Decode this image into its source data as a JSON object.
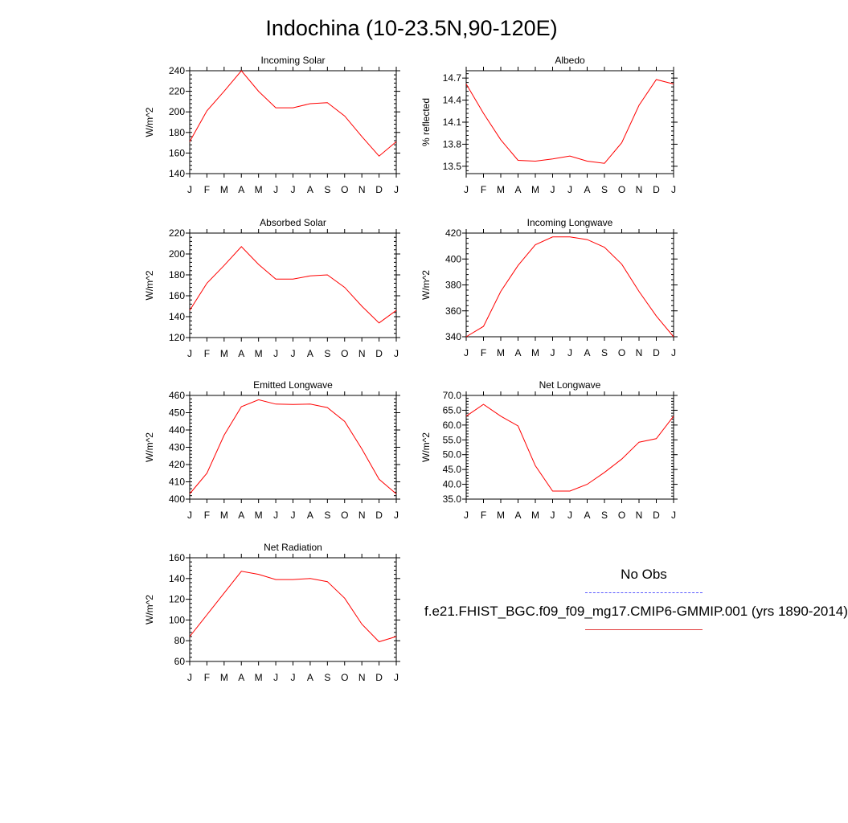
{
  "page_title": "Indochina (10-23.5N,90-120E)",
  "legend": {
    "obs_label": "No Obs",
    "obs_color": "#5b5bff",
    "model_label": "f.e21.FHIST_BGC.f09_f09_mg17.CMIP6-GMMIP.001 (yrs 1890-2014)",
    "model_color": "#ff0000"
  },
  "chart_data": [
    {
      "type": "line",
      "title": "Incoming Solar",
      "ylabel": "W/m^2",
      "categories": [
        "J",
        "F",
        "M",
        "A",
        "M",
        "J",
        "J",
        "A",
        "S",
        "O",
        "N",
        "D",
        "J"
      ],
      "ylim": [
        140,
        240
      ],
      "yticks": [
        "140",
        "160",
        "180",
        "200",
        "220",
        "240"
      ],
      "series": [
        {
          "values": [
            171,
            201,
            220,
            240,
            220,
            204,
            204,
            208,
            209,
            196,
            176,
            157,
            171
          ],
          "color": "#ff0000"
        }
      ]
    },
    {
      "type": "line",
      "title": "Albedo",
      "ylabel": "% reflected",
      "categories": [
        "J",
        "F",
        "M",
        "A",
        "M",
        "J",
        "J",
        "A",
        "S",
        "O",
        "N",
        "D",
        "J"
      ],
      "ylim": [
        13.4,
        14.8
      ],
      "yticks": [
        "13.5",
        "13.8",
        "14.1",
        "14.4",
        "14.7"
      ],
      "series": [
        {
          "values": [
            14.62,
            14.22,
            13.86,
            13.58,
            13.57,
            13.6,
            13.64,
            13.57,
            13.54,
            13.82,
            14.33,
            14.68,
            14.62
          ],
          "color": "#ff0000"
        }
      ]
    },
    {
      "type": "line",
      "title": "Absorbed Solar",
      "ylabel": "W/m^2",
      "categories": [
        "J",
        "F",
        "M",
        "A",
        "M",
        "J",
        "J",
        "A",
        "S",
        "O",
        "N",
        "D",
        "J"
      ],
      "ylim": [
        120,
        220
      ],
      "yticks": [
        "120",
        "140",
        "160",
        "180",
        "200",
        "220"
      ],
      "series": [
        {
          "values": [
            146,
            172,
            189,
            207,
            190,
            176,
            176,
            179,
            180,
            168,
            150,
            134,
            146
          ],
          "color": "#ff0000"
        }
      ]
    },
    {
      "type": "line",
      "title": "Incoming Longwave",
      "ylabel": "W/m^2",
      "categories": [
        "J",
        "F",
        "M",
        "A",
        "M",
        "J",
        "J",
        "A",
        "S",
        "O",
        "N",
        "D",
        "J"
      ],
      "ylim": [
        340,
        420
      ],
      "yticks": [
        "340",
        "360",
        "380",
        "400",
        "420"
      ],
      "series": [
        {
          "values": [
            340,
            348,
            375,
            395,
            411,
            417,
            417,
            415,
            409,
            396,
            375,
            356,
            340
          ],
          "color": "#ff0000"
        }
      ]
    },
    {
      "type": "line",
      "title": "Emitted Longwave",
      "ylabel": "W/m^2",
      "categories": [
        "J",
        "F",
        "M",
        "A",
        "M",
        "J",
        "J",
        "A",
        "S",
        "O",
        "N",
        "D",
        "J"
      ],
      "ylim": [
        400,
        460
      ],
      "yticks": [
        "400",
        "410",
        "420",
        "430",
        "440",
        "450",
        "460"
      ],
      "series": [
        {
          "values": [
            403,
            415,
            437,
            453.5,
            457.5,
            455,
            454.8,
            455,
            453,
            445,
            429,
            411.5,
            403
          ],
          "color": "#ff0000"
        }
      ]
    },
    {
      "type": "line",
      "title": "Net Longwave",
      "ylabel": "W/m^2",
      "categories": [
        "J",
        "F",
        "M",
        "A",
        "M",
        "J",
        "J",
        "A",
        "S",
        "O",
        "N",
        "D",
        "J"
      ],
      "ylim": [
        35,
        70
      ],
      "yticks": [
        "35.0",
        "40.0",
        "45.0",
        "50.0",
        "55.0",
        "60.0",
        "65.0",
        "70.0"
      ],
      "series": [
        {
          "values": [
            63,
            67,
            63,
            59.7,
            46.3,
            37.7,
            37.7,
            40,
            44,
            48.5,
            54.2,
            55.4,
            63
          ],
          "color": "#ff0000"
        }
      ]
    },
    {
      "type": "line",
      "title": "Net Radiation",
      "ylabel": "W/m^2",
      "categories": [
        "J",
        "F",
        "M",
        "A",
        "M",
        "J",
        "J",
        "A",
        "S",
        "O",
        "N",
        "D",
        "J"
      ],
      "ylim": [
        60,
        160
      ],
      "yticks": [
        "60",
        "80",
        "100",
        "120",
        "140",
        "160"
      ],
      "series": [
        {
          "values": [
            84,
            105,
            126,
            147,
            144,
            139,
            139,
            140,
            137,
            121,
            96,
            79,
            84
          ],
          "color": "#ff0000"
        }
      ]
    }
  ]
}
